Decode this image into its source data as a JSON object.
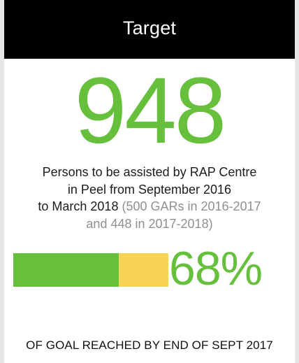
{
  "header": {
    "title": "Target"
  },
  "goal": {
    "number": "948",
    "line1": "Persons to be assisted by RAP Centre",
    "line2": "in Peel from September 2016",
    "line3_main": "to March 2018",
    "line3_muted": " (500 GARs in 2016-2017",
    "line4_muted": "and 448 in 2017-2018)"
  },
  "progress": {
    "percent_label": "68%",
    "fraction": 0.68
  },
  "footer": {
    "text": "OF GOAL REACHED BY END OF SEPT 2017"
  },
  "colors": {
    "accent_green": "#66c03c",
    "remaining_yellow": "#f6d354",
    "header_bg": "#000000"
  }
}
